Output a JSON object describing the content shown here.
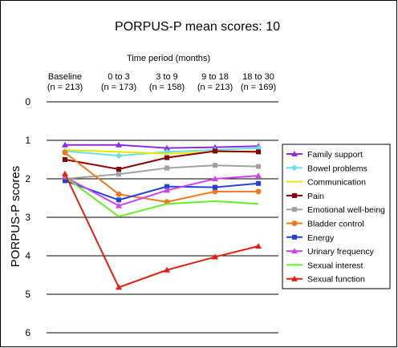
{
  "chart_data": {
    "type": "line",
    "title": "PORPUS-P mean scores: 10",
    "xlabel": "Time period (months)",
    "ylabel": "PORPUS-P scores",
    "categories": [
      {
        "label": "Baseline",
        "n": "(n = 213)"
      },
      {
        "label": "0 to 3",
        "n": "(n = 173)"
      },
      {
        "label": "3 to 9",
        "n": "(n = 158)"
      },
      {
        "label": "9 to 18",
        "n": "(n = 213)"
      },
      {
        "label": "18 to 30",
        "n": "(n = 169)"
      }
    ],
    "ylim": [
      0,
      6
    ],
    "y_inverted": true,
    "yticks": [
      "0",
      "1",
      "2",
      "3",
      "4",
      "5",
      "6"
    ],
    "grid": "horizontal",
    "legend_position": "right",
    "series": [
      {
        "name": "Family support",
        "color": "#8B2BE2",
        "marker": "triangle",
        "values": [
          1.12,
          1.12,
          1.2,
          1.18,
          1.15
        ]
      },
      {
        "name": "Bowel problems",
        "color": "#66E0E8",
        "marker": "diamond",
        "values": [
          1.28,
          1.4,
          1.3,
          1.25,
          1.2
        ]
      },
      {
        "name": "Communication",
        "color": "#E8E800",
        "marker": "line",
        "values": [
          1.25,
          1.3,
          1.35,
          1.3,
          1.28
        ]
      },
      {
        "name": "Pain",
        "color": "#8B0000",
        "marker": "square",
        "values": [
          1.5,
          1.75,
          1.45,
          1.28,
          1.3
        ]
      },
      {
        "name": "Emotional well-being",
        "color": "#A0A0A0",
        "marker": "square",
        "values": [
          2.0,
          1.88,
          1.72,
          1.65,
          1.68
        ]
      },
      {
        "name": "Bladder control",
        "color": "#F07820",
        "marker": "circle",
        "values": [
          1.32,
          2.4,
          2.6,
          2.33,
          2.33
        ]
      },
      {
        "name": "Energy",
        "color": "#2040E0",
        "marker": "square",
        "values": [
          2.05,
          2.55,
          2.2,
          2.22,
          2.12
        ]
      },
      {
        "name": "Urinary frequency",
        "color": "#CC44EE",
        "marker": "triangle",
        "values": [
          1.95,
          2.7,
          2.3,
          2.0,
          1.92
        ]
      },
      {
        "name": "Sexual interest",
        "color": "#66EE22",
        "marker": "line",
        "values": [
          1.95,
          2.98,
          2.65,
          2.58,
          2.65
        ]
      },
      {
        "name": "Sexual function",
        "color": "#E02010",
        "marker": "triangle",
        "values": [
          1.87,
          4.82,
          4.37,
          4.03,
          3.75
        ]
      }
    ]
  }
}
